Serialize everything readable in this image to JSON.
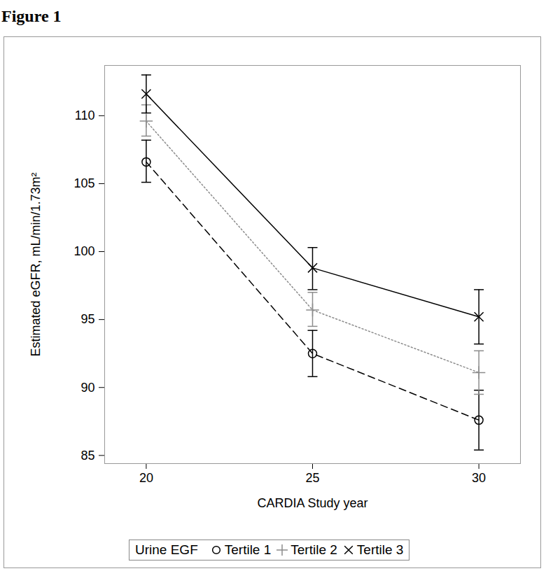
{
  "chart_data": {
    "type": "line",
    "title": "Figure 1",
    "x_label": "CARDIA Study year",
    "y_label": "Estimated eGFR, mL/min/1.73m²",
    "legend_title": "Urine EGF",
    "x": [
      20,
      25,
      30
    ],
    "xlim": [
      18.75,
      31.25
    ],
    "xticks": [
      20,
      25,
      30
    ],
    "ylim": [
      84.4,
      113.7
    ],
    "yticks": [
      85,
      90,
      95,
      100,
      105,
      110
    ],
    "grid": false,
    "legend": "bottom",
    "series": [
      {
        "name": "Tertile 1",
        "color": "#000000",
        "marker": "circle",
        "line_style": "dashed",
        "values": [
          106.6,
          92.5,
          87.6
        ],
        "lower": [
          105.1,
          90.8,
          85.4
        ],
        "upper": [
          108.2,
          94.2,
          89.8
        ]
      },
      {
        "name": "Tertile 2",
        "color": "#8c8c8c",
        "marker": "plus",
        "line_style": "dotted",
        "values": [
          109.6,
          95.7,
          91.1
        ],
        "lower": [
          108.5,
          94.5,
          89.5
        ],
        "upper": [
          110.8,
          97.0,
          92.7
        ]
      },
      {
        "name": "Tertile 3",
        "color": "#000000",
        "marker": "x",
        "line_style": "solid",
        "values": [
          111.6,
          98.8,
          95.2
        ],
        "lower": [
          110.2,
          97.2,
          93.2
        ],
        "upper": [
          113.0,
          100.3,
          97.2
        ]
      }
    ]
  }
}
